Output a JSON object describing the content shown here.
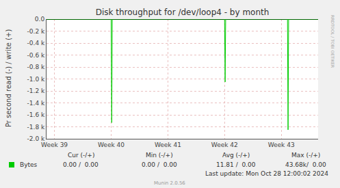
{
  "chart_data": {
    "type": "line",
    "title": "Disk throughput for /dev/loop4 - by month",
    "y_label": "Pr second read (-) / write (+)",
    "x": [
      38.86,
      40.0,
      40.01,
      40.02,
      42.0,
      42.01,
      42.02,
      43.11,
      43.12,
      43.13,
      43.65
    ],
    "series": [
      {
        "name": "Bytes",
        "color": "#00cc00",
        "values": [
          0,
          0,
          -1730,
          0,
          0,
          -1050,
          0,
          0,
          -1850,
          0,
          0
        ],
        "stats": [
          "0.00 /  0.00",
          "0.00 /  0.00",
          "11.81 /  0.00",
          "43.68k/  0.00"
        ]
      }
    ],
    "stats_header": [
      "Cur (-/+)",
      "Min (-/+)",
      "Avg (-/+)",
      "Max (-/+)"
    ],
    "xlim": [
      38.86,
      43.65
    ],
    "xticks": [
      {
        "value": 39,
        "label": "Week 39"
      },
      {
        "value": 40,
        "label": "Week 40"
      },
      {
        "value": 41,
        "label": "Week 41"
      },
      {
        "value": 42,
        "label": "Week 42"
      },
      {
        "value": 43,
        "label": "Week 43"
      }
    ],
    "ylim": [
      -2000,
      0
    ],
    "yticks": [
      {
        "value": 0,
        "label": "0.0"
      },
      {
        "value": -200,
        "label": "-0.2 k"
      },
      {
        "value": -400,
        "label": "-0.4 k"
      },
      {
        "value": -600,
        "label": "-0.6 k"
      },
      {
        "value": -800,
        "label": "-0.8 k"
      },
      {
        "value": -1000,
        "label": "-1.0 k"
      },
      {
        "value": -1200,
        "label": "-1.2 k"
      },
      {
        "value": -1400,
        "label": "-1.4 k"
      },
      {
        "value": -1600,
        "label": "-1.6 k"
      },
      {
        "value": -1800,
        "label": "-1.8 k"
      },
      {
        "value": -2000,
        "label": "-2.0 k"
      }
    ],
    "grid": true,
    "annotations": [
      "Last update: Mon Oct 28 12:00:02 2024",
      "Munin 2.0.56",
      "RRDTOOL / TOBI OETIKER"
    ]
  }
}
